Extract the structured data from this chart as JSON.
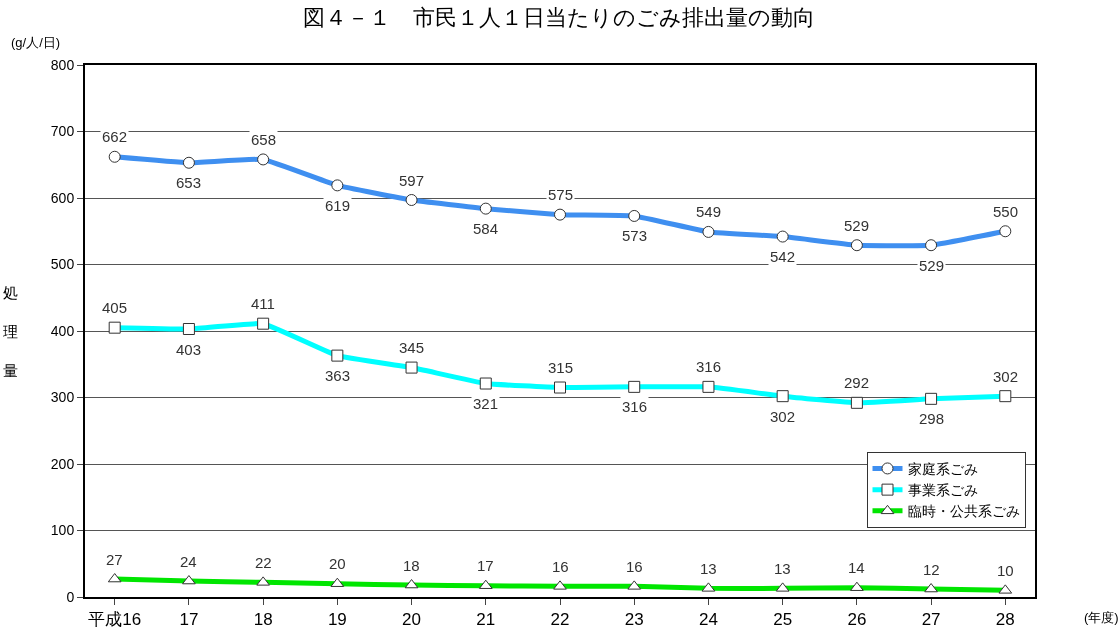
{
  "chart_data": {
    "type": "line",
    "title": "図４－１　市民１人１日当たりのごみ排出量の動向",
    "ylabel": "処理量",
    "annotations": [
      "(g/人/日)",
      "(年度)"
    ],
    "categories": [
      "平成16",
      "17",
      "18",
      "19",
      "20",
      "21",
      "22",
      "23",
      "24",
      "25",
      "26",
      "27",
      "28"
    ],
    "series": [
      {
        "name": "家庭系ごみ",
        "color": "#3f8ff0",
        "marker": "circle",
        "values": [
          662,
          653,
          658,
          619,
          597,
          584,
          575,
          573,
          549,
          542,
          529,
          529,
          550
        ]
      },
      {
        "name": "事業系ごみ",
        "color": "#00ffff",
        "marker": "square",
        "values": [
          405,
          403,
          411,
          363,
          345,
          321,
          315,
          316,
          316,
          302,
          292,
          298,
          302
        ]
      },
      {
        "name": "臨時・公共系ごみ",
        "color": "#00e600",
        "marker": "triangle",
        "values": [
          27,
          24,
          22,
          20,
          18,
          17,
          16,
          16,
          13,
          13,
          14,
          12,
          10
        ]
      }
    ],
    "ylim": [
      0,
      800
    ],
    "yticks": [
      0,
      100,
      200,
      300,
      400,
      500,
      600,
      700,
      800
    ],
    "grid": "y",
    "legend": "bottom right",
    "data_labels": true,
    "line_style": "solid"
  }
}
